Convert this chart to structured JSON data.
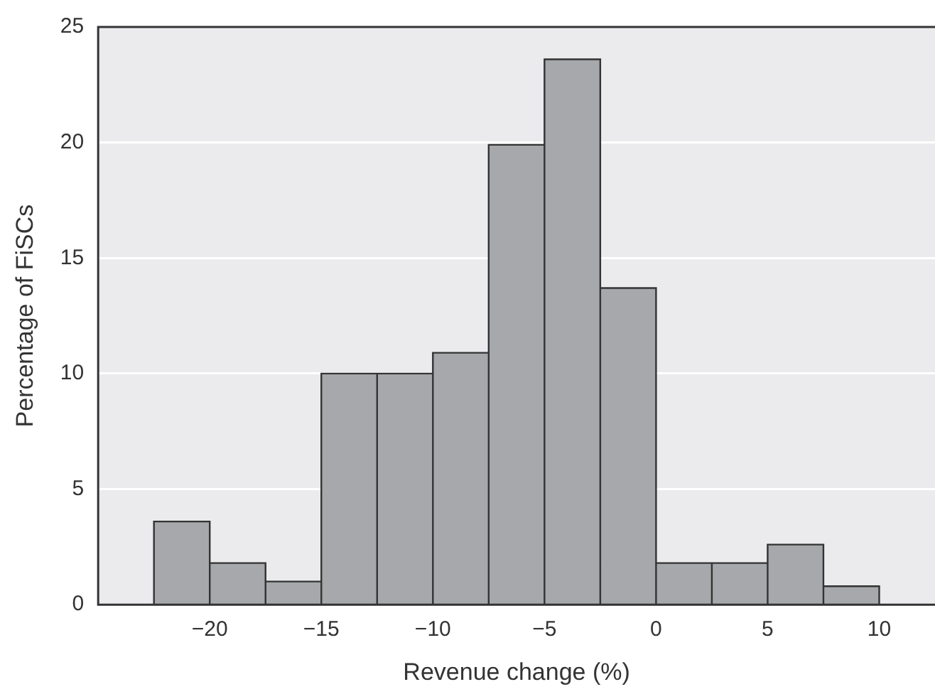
{
  "chart_data": {
    "type": "histogram",
    "xlabel": "Revenue change (%)",
    "ylabel": "Percentage of FiSCs",
    "bins": [
      -22.5,
      -20,
      -17.5,
      -15,
      -12.5,
      -10,
      -7.5,
      -5,
      -2.5,
      0,
      2.5,
      5,
      7.5,
      10
    ],
    "values": [
      3.6,
      1.8,
      1.0,
      10.0,
      10.0,
      10.9,
      19.9,
      23.6,
      13.7,
      1.8,
      1.8,
      2.6,
      0.8
    ],
    "color": "#a7a8ab",
    "xlim": [
      -25,
      12.5
    ],
    "xticks": [
      -20,
      -15,
      -10,
      -5,
      0,
      5,
      10
    ],
    "ylim": [
      0,
      25
    ],
    "yticks": [
      0,
      5,
      10,
      15,
      20,
      25
    ],
    "grid": "y"
  }
}
